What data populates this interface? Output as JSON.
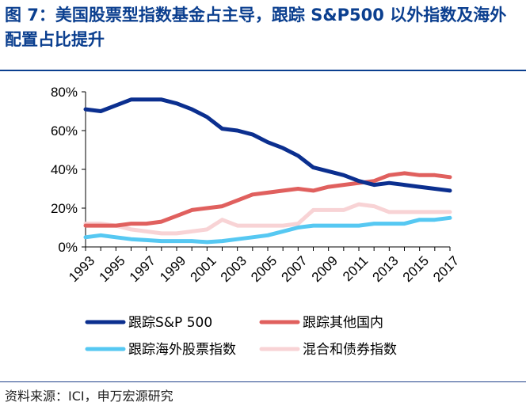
{
  "title": "图 7：美国股票型指数基金占主导，跟踪 S&P500 以外指数及海外配置占比提升",
  "source": "资料来源：ICI，申万宏源研究",
  "colors": {
    "title": "#0B3F8F",
    "sp500": "#0B2F8F",
    "other_domestic": "#E0605E",
    "international": "#56C8F2",
    "bond_hybrid": "#F8D3D5"
  },
  "chart_data": {
    "type": "line",
    "title": "",
    "xlabel": "",
    "ylabel": "",
    "x": [
      1993,
      1994,
      1995,
      1996,
      1997,
      1998,
      1999,
      2000,
      2001,
      2002,
      2003,
      2004,
      2005,
      2006,
      2007,
      2008,
      2009,
      2010,
      2011,
      2012,
      2013,
      2014,
      2015,
      2016,
      2017
    ],
    "x_tick_labels": [
      "1993",
      "1995",
      "1997",
      "1999",
      "2001",
      "2003",
      "2005",
      "2007",
      "2009",
      "2011",
      "2013",
      "2015",
      "2017"
    ],
    "y_tick_labels": [
      "0%",
      "20%",
      "40%",
      "60%",
      "80%"
    ],
    "ylim": [
      0,
      80
    ],
    "y_unit": "%",
    "legend_position": "bottom",
    "series": [
      {
        "name": "跟踪S&P 500",
        "color_key": "sp500",
        "values": [
          71,
          70,
          73,
          76,
          76,
          76,
          74,
          71,
          67,
          61,
          60,
          58,
          54,
          51,
          47,
          41,
          39,
          37,
          34,
          32,
          33,
          32,
          31,
          30,
          29
        ]
      },
      {
        "name": "跟踪其他国内",
        "color_key": "other_domestic",
        "values": [
          11,
          11,
          11,
          12,
          12,
          13,
          16,
          19,
          20,
          21,
          24,
          27,
          28,
          29,
          30,
          29,
          31,
          32,
          33,
          34,
          37,
          38,
          37,
          37,
          36
        ]
      },
      {
        "name": "跟踪海外股票指数",
        "color_key": "international",
        "values": [
          5,
          6,
          5,
          4,
          3.5,
          3,
          3,
          3,
          2.5,
          3,
          4,
          5,
          6,
          8,
          10,
          11,
          11,
          11,
          11,
          12,
          12,
          12,
          14,
          14,
          15
        ]
      },
      {
        "name": "混合和债券指数",
        "color_key": "bond_hybrid",
        "values": [
          12,
          12,
          11,
          9,
          8,
          7,
          7,
          8,
          9,
          14,
          11,
          11,
          11,
          11,
          12,
          19,
          19,
          19,
          22,
          21,
          18,
          18,
          18,
          18,
          18
        ]
      }
    ]
  }
}
